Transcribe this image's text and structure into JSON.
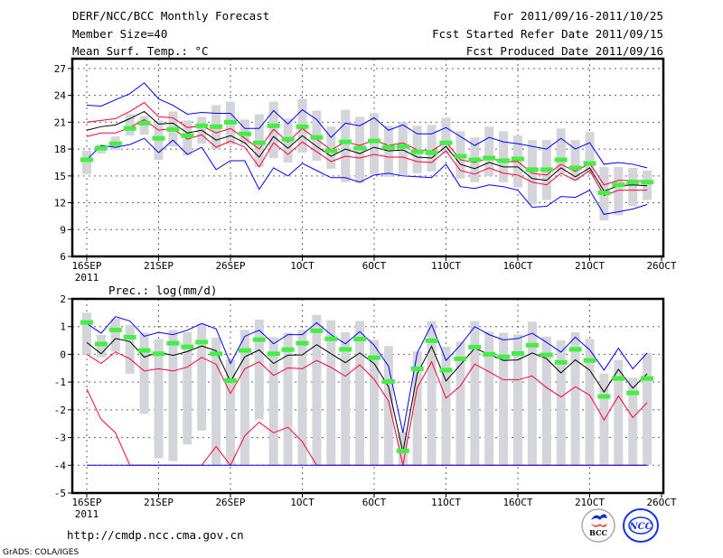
{
  "header": {
    "title": "DERF/NCC/BCC Monthly Forecast",
    "member_size": "Member Size=40",
    "variable": "Mean Surf. Temp.: °C",
    "period": "For 2011/09/16-2011/10/25",
    "started": "Fcst Started Refer Date 2011/09/15",
    "produced": "Fcst Produced Date 2011/09/16"
  },
  "footer": {
    "url": "http://cmdp.ncc.cma.gov.cn",
    "credit": "GrADS: COLA/IGES",
    "logos": [
      "BCC",
      "NCC"
    ]
  },
  "colors": {
    "mean": "#000000",
    "spread": "#ff0033",
    "extreme": "#0000ff",
    "marker": "#44ee44",
    "box": "#d4d5da",
    "grid": "#666666"
  },
  "chart_data": [
    {
      "type": "line",
      "title": "Mean Surf. Temp.: °C",
      "xlabel": "",
      "ylabel": "",
      "x_tick_labels": [
        "16SEP",
        "21SEP",
        "26SEP",
        "1OCT",
        "6OCT",
        "11OCT",
        "16OCT",
        "21OCT",
        "26OCT"
      ],
      "x_tick_sub": "2011",
      "y_ticks": [
        6,
        9,
        12,
        15,
        18,
        21,
        24,
        27
      ],
      "ylim": [
        6,
        28.1
      ],
      "grid": true,
      "series": [
        {
          "name": "max",
          "color": "#0000ff",
          "values": [
            22.9,
            22.8,
            23.5,
            24.2,
            25.4,
            23.6,
            22.9,
            21.9,
            22.1,
            22.0,
            22.0,
            20.3,
            20.3,
            22.3,
            20.8,
            22.4,
            21.3,
            19.3,
            20.9,
            20.6,
            21.5,
            20.1,
            20.7,
            19.7,
            19.7,
            20.4,
            19.4,
            18.4,
            19.3,
            18.8,
            18.6,
            18.3,
            18.0,
            19.2,
            18.0,
            18.7,
            16.3,
            16.5,
            16.3,
            15.9
          ]
        },
        {
          "name": "upper",
          "color": "#ff0033",
          "values": [
            21.0,
            21.2,
            21.4,
            22.2,
            23.2,
            21.6,
            21.5,
            20.4,
            20.6,
            19.8,
            20.3,
            19.2,
            18.0,
            20.2,
            18.8,
            20.3,
            19.1,
            17.9,
            18.8,
            18.4,
            19.0,
            18.4,
            18.7,
            17.9,
            17.8,
            18.8,
            16.8,
            16.5,
            17.0,
            16.6,
            16.6,
            15.3,
            15.1,
            16.3,
            15.5,
            16.4,
            14.0,
            14.5,
            14.5,
            14.4
          ]
        },
        {
          "name": "mean",
          "color": "#000000",
          "values": [
            20.1,
            20.5,
            20.7,
            21.4,
            22.2,
            20.8,
            20.9,
            19.8,
            20.1,
            19.0,
            19.5,
            18.7,
            17.1,
            19.4,
            18.1,
            19.5,
            18.3,
            17.2,
            18.0,
            17.5,
            18.2,
            17.8,
            17.9,
            17.1,
            17.0,
            18.3,
            16.3,
            15.8,
            16.5,
            16.0,
            16.0,
            14.7,
            14.5,
            15.9,
            14.9,
            15.9,
            13.3,
            13.9,
            14.0,
            13.9
          ]
        },
        {
          "name": "lower",
          "color": "#ff0033",
          "values": [
            19.4,
            19.8,
            19.8,
            20.4,
            21.3,
            20.1,
            20.3,
            19.1,
            19.6,
            18.2,
            18.9,
            18.2,
            16.0,
            18.7,
            17.4,
            18.8,
            17.7,
            16.6,
            17.2,
            17.0,
            17.4,
            17.1,
            17.1,
            16.6,
            16.5,
            17.8,
            15.6,
            15.2,
            15.9,
            15.3,
            15.1,
            14.3,
            14.0,
            15.3,
            14.5,
            15.6,
            12.8,
            13.4,
            13.4,
            13.4
          ]
        },
        {
          "name": "min",
          "color": "#0000ff",
          "values": [
            16.8,
            18.4,
            18.2,
            18.5,
            19.2,
            17.6,
            19.0,
            17.4,
            18.2,
            15.7,
            16.7,
            16.7,
            13.5,
            15.9,
            15.0,
            16.4,
            15.6,
            14.8,
            14.8,
            14.3,
            15.1,
            15.3,
            15.0,
            14.9,
            14.8,
            16.3,
            13.8,
            13.6,
            14.0,
            13.8,
            13.4,
            11.5,
            11.6,
            12.7,
            12.6,
            13.4,
            10.7,
            11.0,
            11.3,
            11.8
          ]
        }
      ],
      "markers": [
        16.8,
        18.1,
        18.6,
        20.3,
        20.9,
        19.2,
        20.2,
        19.5,
        20.6,
        20.5,
        21.0,
        19.7,
        18.7,
        20.6,
        19.1,
        20.5,
        19.3,
        17.8,
        18.8,
        18.1,
        18.9,
        18.2,
        18.3,
        17.7,
        17.6,
        18.7,
        17.2,
        16.8,
        17.0,
        16.7,
        16.9,
        15.7,
        15.7,
        16.8,
        15.9,
        16.4,
        13.1,
        14.0,
        14.3,
        14.3
      ],
      "boxes_low": [
        15.2,
        17.5,
        17.9,
        19.5,
        19.6,
        16.8,
        18.3,
        17.3,
        18.6,
        18.0,
        18.5,
        18.5,
        16.0,
        17.0,
        16.5,
        17.6,
        16.7,
        15.8,
        14.3,
        14.2,
        15.2,
        14.9,
        15.1,
        15.3,
        15.5,
        17.5,
        14.7,
        14.3,
        15.0,
        14.3,
        13.7,
        11.8,
        12.3,
        15.3,
        14.5,
        15.3,
        10.0,
        10.6,
        11.6,
        12.3
      ],
      "boxes_high": [
        17.8,
        18.5,
        19.4,
        21.9,
        21.7,
        21.2,
        22.2,
        21.2,
        21.6,
        22.9,
        23.3,
        21.3,
        21.9,
        23.3,
        21.4,
        23.6,
        22.3,
        20.5,
        22.4,
        21.6,
        22.0,
        20.6,
        21.0,
        20.6,
        20.7,
        21.5,
        20.0,
        19.3,
        20.5,
        20.0,
        19.5,
        19.0,
        19.0,
        20.3,
        19.0,
        19.9,
        16.0,
        16.0,
        15.9,
        15.6
      ]
    },
    {
      "type": "line",
      "title": "Prec.: log(mm/d)",
      "xlabel": "",
      "ylabel": "",
      "x_tick_labels": [
        "16SEP",
        "21SEP",
        "26SEP",
        "1OCT",
        "6OCT",
        "11OCT",
        "16OCT",
        "21OCT",
        "26OCT"
      ],
      "x_tick_sub": "2011",
      "y_ticks": [
        -5,
        -4,
        -3,
        -2,
        -1,
        0,
        1,
        2
      ],
      "ylim": [
        -5,
        2
      ],
      "grid": true,
      "series": [
        {
          "name": "max",
          "color": "#0000ff",
          "values": [
            1.11,
            0.76,
            1.36,
            1.2,
            0.65,
            0.79,
            0.71,
            0.87,
            1.11,
            0.92,
            -0.33,
            0.65,
            0.87,
            0.38,
            0.71,
            0.71,
            1.14,
            0.71,
            0.38,
            0.82,
            0.33,
            -0.43,
            -2.83,
            0.05,
            1.07,
            -0.22,
            0.33,
            1.0,
            0.71,
            0.52,
            0.57,
            0.76,
            0.43,
            0.08,
            0.62,
            0.16,
            -0.57,
            0.22,
            -0.52,
            0.05
          ]
        },
        {
          "name": "upper",
          "color": "#ff0033",
          "values": [
            0.0,
            -0.33,
            0.09,
            -0.16,
            -0.6,
            -0.52,
            -0.6,
            -0.46,
            -0.11,
            -0.36,
            -1.41,
            -0.52,
            -0.27,
            -0.76,
            -0.49,
            -0.52,
            -0.22,
            -0.47,
            -0.79,
            -0.38,
            -0.9,
            -1.68,
            -4.0,
            -1.2,
            -0.27,
            -1.58,
            -1.14,
            -0.35,
            -0.63,
            -0.92,
            -0.92,
            -0.78,
            -1.2,
            -1.54,
            -1.17,
            -1.47,
            -2.37,
            -1.5,
            -2.28,
            -1.74
          ]
        },
        {
          "name": "mean",
          "color": "#000000",
          "values": [
            0.43,
            0.02,
            0.57,
            0.46,
            -0.1,
            0.08,
            -0.04,
            0.1,
            0.3,
            0.13,
            -0.98,
            -0.09,
            0.16,
            -0.33,
            -0.03,
            -0.02,
            0.35,
            0.02,
            -0.3,
            0.05,
            -0.33,
            -1.17,
            -3.53,
            -0.7,
            0.29,
            -0.96,
            -0.38,
            0.22,
            0.0,
            -0.22,
            -0.2,
            0.05,
            -0.16,
            -0.67,
            -0.2,
            -0.57,
            -1.36,
            -0.54,
            -1.22,
            -0.7
          ]
        },
        {
          "name": "lower",
          "color": "#ff0033",
          "values": [
            -1.25,
            -2.34,
            -2.83,
            -4,
            -4,
            -4,
            -4,
            -4,
            -4,
            -3.32,
            -4,
            -2.93,
            -2.45,
            -2.83,
            -2.63,
            -3.15,
            -4,
            -4,
            -4,
            -4,
            -4,
            -4,
            -4,
            -4,
            -4,
            -4,
            -4,
            -4,
            -4,
            -4,
            -4,
            -4,
            -4,
            -4,
            -4,
            -4,
            -4,
            -4,
            -4,
            -4
          ]
        },
        {
          "name": "min",
          "color": "#0000ff",
          "values": [
            -4,
            -4,
            -4,
            -4,
            -4,
            -4,
            -4,
            -4,
            -4,
            -4,
            -4,
            -4,
            -4,
            -4,
            -4,
            -4,
            -4,
            -4,
            -4,
            -4,
            -4,
            -4,
            -4,
            -4,
            -4,
            -4,
            -4,
            -4,
            -4,
            -4,
            -4,
            -4,
            -4,
            -4,
            -4,
            -4,
            -4,
            -4,
            -4,
            -4
          ]
        }
      ],
      "markers": [
        1.15,
        0.37,
        0.88,
        0.62,
        0.14,
        0.02,
        0.4,
        0.27,
        0.44,
        0.02,
        -0.95,
        0.14,
        0.53,
        0.02,
        0.17,
        0.4,
        0.85,
        0.56,
        0.18,
        0.55,
        -0.12,
        -0.98,
        -3.48,
        -0.52,
        0.49,
        -0.57,
        -0.16,
        0.26,
        0.0,
        -0.09,
        0.03,
        0.33,
        -0.02,
        -0.29,
        0.18,
        -0.22,
        -1.52,
        -0.87,
        -1.39,
        -0.87
      ],
      "boxes_low": [
        0.0,
        -0.1,
        0.1,
        -0.7,
        -2.15,
        -3.75,
        -3.85,
        -3.25,
        -2.75,
        -4,
        -4,
        -4,
        -2.35,
        -4,
        -4,
        -4,
        -4,
        -4,
        -4,
        -4,
        -4,
        -4,
        -4,
        -4,
        -4,
        -4,
        -4,
        -4,
        -4,
        -4,
        -4,
        -4,
        -4,
        -4,
        -4,
        -4,
        -4,
        -4,
        -4,
        -4
      ],
      "boxes_high": [
        1.5,
        0.7,
        1.3,
        1.05,
        0.78,
        0.55,
        0.88,
        0.8,
        1.1,
        0.6,
        -0.2,
        0.88,
        1.25,
        0.62,
        0.78,
        0.88,
        1.42,
        1.23,
        0.8,
        1.2,
        0.52,
        0.3,
        -2.8,
        0.1,
        1.2,
        0.28,
        0.46,
        1.2,
        0.82,
        0.78,
        0.72,
        1.18,
        0.64,
        0.5,
        0.8,
        0.55,
        -0.7,
        -0.2,
        -0.85,
        0.05
      ]
    }
  ]
}
